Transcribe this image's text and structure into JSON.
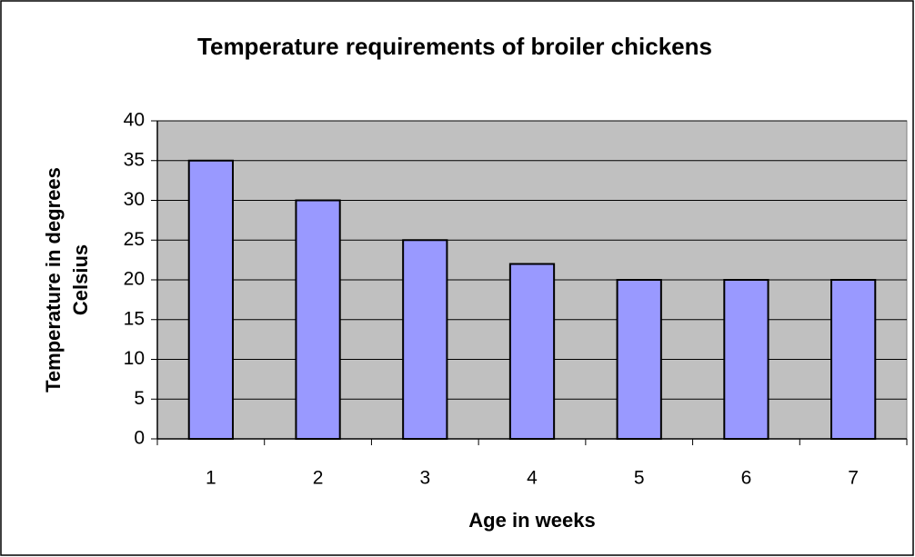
{
  "chart_data": {
    "type": "bar",
    "title": "Temperature requirements of broiler chickens",
    "x_label": "Age in weeks",
    "y_label": [
      "Temperature in degrees",
      "Celsius"
    ],
    "categories": [
      "1",
      "2",
      "3",
      "4",
      "5",
      "6",
      "7"
    ],
    "values": [
      35,
      30,
      25,
      22,
      20,
      20,
      20
    ],
    "color": "#9999ff",
    "ylim": [
      0,
      40
    ],
    "yticks": [
      0,
      5,
      10,
      15,
      20,
      25,
      30,
      35,
      40
    ],
    "grid": true
  }
}
